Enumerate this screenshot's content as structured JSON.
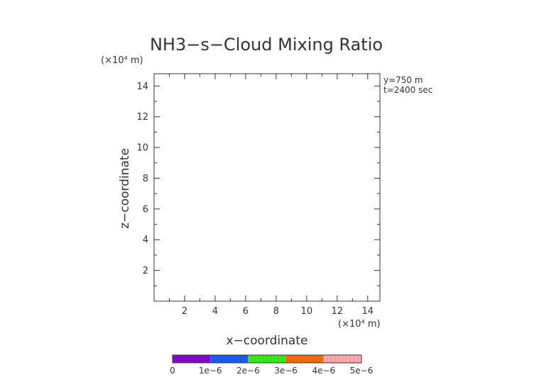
{
  "chart_data": {
    "type": "heatmap",
    "title": "NH3−s−Cloud Mixing Ratio",
    "xlabel": "x−coordinate",
    "ylabel": "z−coordinate",
    "x_unit_label": "(×10⁴ m)",
    "y_unit_label": "(×10⁴ m)",
    "xlim": [
      0,
      14.8
    ],
    "ylim": [
      0,
      14.8
    ],
    "x_ticks": [
      2,
      4,
      6,
      8,
      10,
      12,
      14
    ],
    "x_tick_labels": [
      "2",
      "4",
      "6",
      "8",
      "10",
      "12",
      "14"
    ],
    "y_ticks": [
      2,
      4,
      6,
      8,
      10,
      12,
      14
    ],
    "y_tick_labels": [
      "2",
      "4",
      "6",
      "8",
      "10",
      "12",
      "14"
    ],
    "annotations": [
      "y=750 m",
      "t=2400 sec"
    ],
    "values": [],
    "colorbar": {
      "range": [
        0,
        5e-06
      ],
      "tick_values": [
        0,
        1e-06,
        2e-06,
        3e-06,
        4e-06,
        5e-06
      ],
      "tick_labels": [
        "0",
        "1e−6",
        "2e−6",
        "3e−6",
        "4e−6",
        "5e−6"
      ],
      "colors": [
        "#8b00cc",
        "#1a5cff",
        "#33ee11",
        "#ff6a00",
        "#ffaab0"
      ]
    },
    "grid": false
  }
}
